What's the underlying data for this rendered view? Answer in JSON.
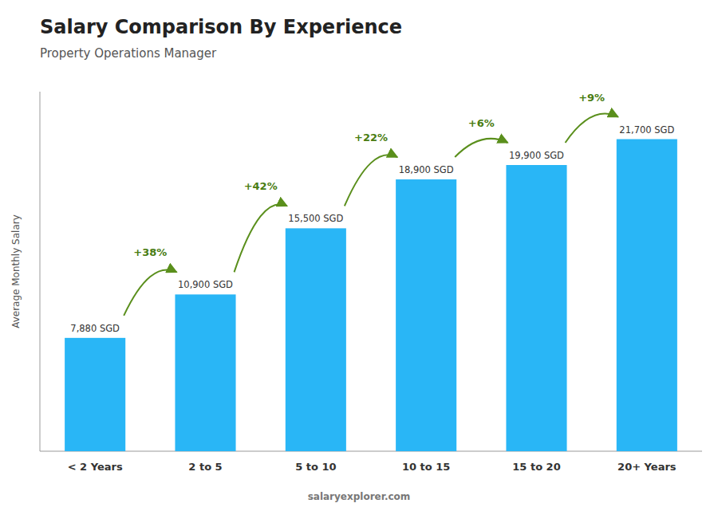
{
  "chart_data": {
    "type": "bar",
    "title": "Salary Comparison By Experience",
    "subtitle": "Property Operations Manager",
    "ylabel": "Average Monthly Salary",
    "categories": [
      "< 2 Years",
      "2 to 5",
      "5 to 10",
      "10 to 15",
      "15 to 20",
      "20+ Years"
    ],
    "values": [
      7880,
      10900,
      15500,
      18900,
      19900,
      21700
    ],
    "value_labels": [
      "7,880 SGD",
      "10,900 SGD",
      "15,500 SGD",
      "18,900 SGD",
      "19,900 SGD",
      "21,700 SGD"
    ],
    "data_labels": true,
    "annotations": [
      "+38%",
      "+42%",
      "+22%",
      "+6%",
      "+9%"
    ],
    "watermark": "salaryexplorer.com",
    "color": "#29b6f6",
    "ylim": [
      0,
      25000
    ],
    "grid": false,
    "tick_labels": "x"
  }
}
